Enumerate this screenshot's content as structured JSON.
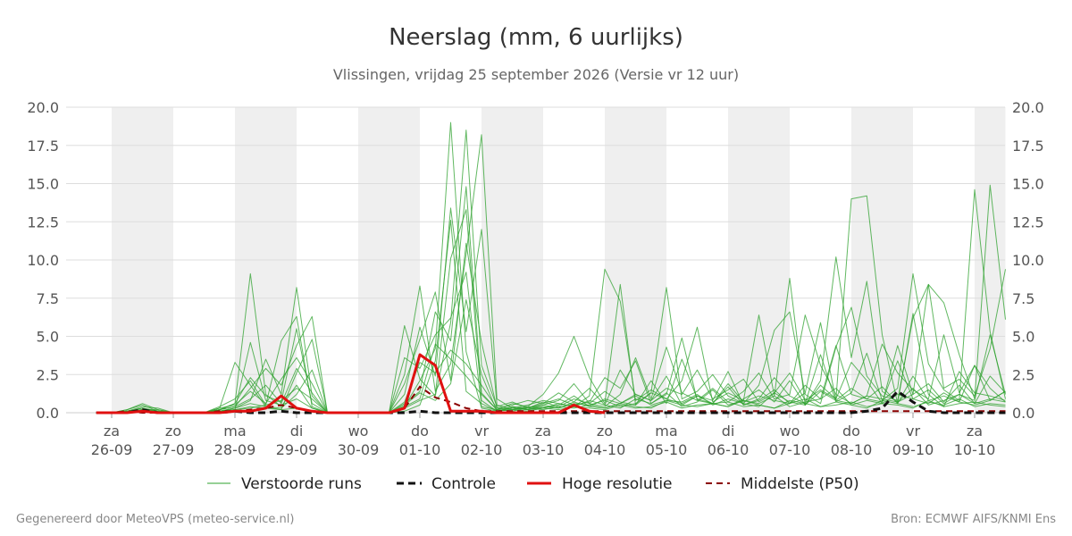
{
  "header": {
    "title": "Neerslag (mm, 6 uurlijks)",
    "subtitle": "Vlissingen, vrijdag 25 september 2026 (Versie vr 12 uur)"
  },
  "credits": {
    "left": "Gegenereerd door MeteoVPS (meteo-service.nl)",
    "right": "Bron: ECMWF AIFS/KNMI Ens"
  },
  "chart_data": {
    "type": "line",
    "x_unit": "dag",
    "day_labels": [
      {
        "day": "za",
        "date": "26-09"
      },
      {
        "day": "zo",
        "date": "27-09"
      },
      {
        "day": "ma",
        "date": "28-09"
      },
      {
        "day": "di",
        "date": "29-09"
      },
      {
        "day": "wo",
        "date": "30-09"
      },
      {
        "day": "do",
        "date": "01-10"
      },
      {
        "day": "vr",
        "date": "02-10"
      },
      {
        "day": "za",
        "date": "03-10"
      },
      {
        "day": "zo",
        "date": "04-10"
      },
      {
        "day": "ma",
        "date": "05-10"
      },
      {
        "day": "di",
        "date": "06-10"
      },
      {
        "day": "wo",
        "date": "07-10"
      },
      {
        "day": "do",
        "date": "08-10"
      },
      {
        "day": "vr",
        "date": "09-10"
      },
      {
        "day": "za",
        "date": "10-10"
      }
    ],
    "weekend_bands": [
      [
        0,
        1
      ],
      [
        2,
        3
      ],
      [
        4,
        5
      ],
      [
        6,
        7
      ],
      [
        8,
        9
      ],
      [
        10,
        11
      ],
      [
        12,
        13
      ],
      [
        14,
        14.5
      ]
    ],
    "x_range": [
      -0.25,
      14.5
    ],
    "y_range": [
      0,
      20
    ],
    "y_ticks": [
      "0.0",
      "2.5",
      "5.0",
      "7.5",
      "10.0",
      "12.5",
      "15.0",
      "17.5",
      "20.0"
    ],
    "grid": true,
    "legend_position": "bottom",
    "colors": {
      "members": "#2ca02c",
      "control": "#111111",
      "hires": "#e01010",
      "median": "#8b0000",
      "band": "#efefef"
    },
    "legend": [
      "Verstoorde runs",
      "Controle",
      "Hoge resolutie",
      "Middelste (P50)"
    ],
    "hires": {
      "x": [
        -0.25,
        0,
        0.25,
        0.5,
        0.75,
        1,
        1.25,
        1.5,
        1.75,
        2,
        2.25,
        2.5,
        2.75,
        3,
        3.25,
        3.5,
        3.75,
        4,
        4.25,
        4.5,
        4.75,
        5,
        5.25,
        5.5,
        5.75,
        6,
        6.25,
        6.5,
        6.75,
        7,
        7.25,
        7.5,
        7.75,
        8
      ],
      "y": [
        0.0,
        0.0,
        0.0,
        0.1,
        0.0,
        0.0,
        0.0,
        0.0,
        0.0,
        0.1,
        0.1,
        0.3,
        1.1,
        0.3,
        0.1,
        0.0,
        0.0,
        0.0,
        0.0,
        0.0,
        0.3,
        3.8,
        3.1,
        0.1,
        0.1,
        0.1,
        0.0,
        0.0,
        0.0,
        0.0,
        0.0,
        0.5,
        0.1,
        0.0
      ]
    },
    "median": {
      "x": [
        -0.25,
        0,
        0.25,
        0.5,
        0.75,
        1,
        1.25,
        1.5,
        1.75,
        2,
        2.25,
        2.5,
        2.75,
        3,
        3.25,
        3.5,
        3.75,
        4,
        4.25,
        4.5,
        4.75,
        5,
        5.25,
        5.5,
        5.75,
        6,
        6.25,
        6.5,
        6.75,
        7,
        7.25,
        7.5,
        7.75,
        8,
        8.25,
        8.5,
        8.75,
        9,
        9.25,
        9.5,
        9.75,
        10,
        10.25,
        10.5,
        10.75,
        11,
        11.25,
        11.5,
        11.75,
        12,
        12.25,
        12.5,
        12.75,
        13,
        13.25,
        13.5,
        13.75,
        14,
        14.25,
        14.5
      ],
      "y": [
        0.0,
        0.0,
        0.1,
        0.0,
        0.0,
        0.0,
        0.0,
        0.0,
        0.1,
        0.1,
        0.2,
        0.3,
        0.5,
        0.3,
        0.1,
        0.0,
        0.0,
        0.0,
        0.0,
        0.0,
        0.3,
        1.7,
        1.0,
        0.7,
        0.3,
        0.1,
        0.1,
        0.1,
        0.1,
        0.1,
        0.1,
        0.1,
        0.1,
        0.1,
        0.1,
        0.1,
        0.1,
        0.1,
        0.1,
        0.1,
        0.1,
        0.1,
        0.1,
        0.1,
        0.1,
        0.1,
        0.1,
        0.1,
        0.1,
        0.1,
        0.1,
        0.1,
        0.1,
        0.1,
        0.1,
        0.1,
        0.1,
        0.1,
        0.1,
        0.1
      ]
    },
    "control": {
      "x": [
        -0.25,
        0,
        0.25,
        0.5,
        0.75,
        1,
        1.25,
        1.5,
        1.75,
        2,
        2.25,
        2.5,
        2.75,
        3,
        3.25,
        3.5,
        3.75,
        4,
        4.25,
        4.5,
        4.75,
        5,
        5.25,
        5.5,
        5.75,
        6,
        6.25,
        6.5,
        6.75,
        7,
        7.25,
        7.5,
        7.75,
        8,
        8.25,
        8.5,
        8.75,
        9,
        9.25,
        9.5,
        9.75,
        10,
        10.25,
        10.5,
        10.75,
        11,
        11.25,
        11.5,
        11.75,
        12,
        12.25,
        12.5,
        12.75,
        13,
        13.25,
        13.5,
        13.75,
        14,
        14.25,
        14.5
      ],
      "y": [
        0.0,
        0.0,
        0.0,
        0.2,
        0.0,
        0.0,
        0.0,
        0.0,
        0.0,
        0.1,
        0.0,
        0.0,
        0.1,
        0.0,
        0.0,
        0.0,
        0.0,
        0.0,
        0.0,
        0.0,
        0.0,
        0.1,
        0.0,
        0.0,
        0.0,
        0.0,
        0.0,
        0.0,
        0.0,
        0.0,
        0.0,
        0.0,
        0.0,
        0.0,
        0.0,
        0.0,
        0.0,
        0.0,
        0.0,
        0.0,
        0.0,
        0.0,
        0.0,
        0.0,
        0.0,
        0.0,
        0.0,
        0.0,
        0.0,
        0.0,
        0.1,
        0.3,
        1.4,
        0.7,
        0.1,
        0.0,
        0.0,
        0.0,
        0.0,
        0.0
      ]
    },
    "members_x": [
      -0.25,
      0,
      0.25,
      0.5,
      0.75,
      1,
      1.25,
      1.5,
      1.75,
      2,
      2.25,
      2.5,
      2.75,
      3,
      3.25,
      3.5,
      3.75,
      4,
      4.25,
      4.5,
      4.75,
      5,
      5.25,
      5.5,
      5.75,
      6,
      6.25,
      6.5,
      6.75,
      7,
      7.25,
      7.5,
      7.75,
      8,
      8.25,
      8.5,
      8.75,
      9,
      9.25,
      9.5,
      9.75,
      10,
      10.25,
      10.5,
      10.75,
      11,
      11.25,
      11.5,
      11.75,
      12,
      12.25,
      12.5,
      12.75,
      13,
      13.25,
      13.5,
      13.75,
      14,
      14.25,
      14.5
    ],
    "members": [
      [
        0,
        0,
        0.2,
        0.6,
        0.2,
        0,
        0,
        0,
        0.3,
        3.3,
        1.8,
        0.4,
        0.2,
        0.3,
        0.1,
        0,
        0,
        0,
        0,
        0,
        0.4,
        2.1,
        4.2,
        19,
        4,
        0.3,
        0.1,
        0.4,
        0.2,
        0.3,
        0.5,
        1.1,
        0.4,
        0.3,
        0.6,
        1.2,
        0.8,
        2.4,
        0.5,
        1.1,
        0.6,
        0.4,
        0.9,
        1.5,
        0.7,
        2.1,
        0.5,
        1.8,
        0.9,
        14,
        14.2,
        5.1,
        0.6,
        6.5,
        1.2,
        0.4,
        2.7,
        1.3,
        1.1,
        0.8
      ],
      [
        0,
        0,
        0.1,
        0.4,
        0.3,
        0,
        0,
        0,
        0.2,
        0.6,
        9.1,
        1.2,
        0.4,
        1.8,
        0.3,
        0,
        0,
        0,
        0,
        0,
        5.7,
        2.2,
        1.1,
        5.9,
        18.5,
        3.1,
        0.4,
        0.7,
        0.3,
        0.5,
        0.8,
        1.9,
        0.6,
        0.4,
        1.2,
        3.6,
        0.9,
        4.3,
        1.3,
        0.8,
        0.6,
        1.7,
        0.5,
        0.9,
        2.3,
        1.1,
        0.6,
        3.8,
        0.7,
        1.3,
        3.9,
        0.8,
        1.6,
        9.1,
        3.2,
        1.5,
        0.8,
        14.6,
        5.3,
        0.9
      ],
      [
        0,
        0,
        0.1,
        0.2,
        0.1,
        0,
        0,
        0,
        0.4,
        0.9,
        2.1,
        0.5,
        4.7,
        6.3,
        0.4,
        0,
        0,
        0,
        0,
        0,
        2.5,
        8.3,
        1.4,
        3.2,
        10.4,
        18.2,
        0.9,
        0.3,
        0.5,
        0.8,
        0.6,
        0.4,
        1.1,
        9.4,
        7.3,
        0.8,
        1.5,
        0.9,
        2.1,
        5.6,
        0.7,
        1.3,
        0.8,
        6.4,
        1.1,
        8.8,
        0.5,
        2.1,
        10.2,
        3.6,
        8.6,
        1.4,
        0.7,
        1.2,
        8.4,
        7.2,
        3.8,
        0.9,
        14.9,
        6.1
      ],
      [
        0,
        0,
        0.2,
        0.5,
        0.1,
        0,
        0,
        0,
        0.1,
        0.3,
        0.8,
        3.5,
        1.2,
        8.2,
        1.1,
        0,
        0,
        0,
        0,
        0,
        0.6,
        1.4,
        6.6,
        4.7,
        14.8,
        1.3,
        0.2,
        0.6,
        0.4,
        1.2,
        2.6,
        5,
        2.3,
        0.6,
        8.4,
        0.5,
        1.3,
        8.2,
        0.9,
        1.4,
        2.5,
        1.1,
        0.6,
        1.8,
        5.4,
        6.6,
        1.2,
        0.6,
        4.3,
        6.9,
        2.4,
        1.1,
        0.8,
        6.2,
        8.4,
        1.6,
        2.2,
        1.1,
        4.2,
        9.4
      ],
      [
        0,
        0,
        0.1,
        0.3,
        0.1,
        0,
        0,
        0,
        0.2,
        0.4,
        1.6,
        2.9,
        1.8,
        4.4,
        6.3,
        0,
        0,
        0,
        0,
        0,
        1.2,
        5.6,
        2.4,
        13.4,
        5.3,
        12,
        0.5,
        0.2,
        0.3,
        0.6,
        0.9,
        0.5,
        0.7,
        2.3,
        1.6,
        3.4,
        0.6,
        1.2,
        4.9,
        0.8,
        1.6,
        0.7,
        1.4,
        2.6,
        0.9,
        1.2,
        6.4,
        3.1,
        1.2,
        0.6,
        1.1,
        4.5,
        2.6,
        1.5,
        0.9,
        5.1,
        1.3,
        3.1,
        0.8,
        1.4
      ],
      [
        0,
        0,
        0,
        0.1,
        0,
        0,
        0,
        0,
        0.1,
        0.2,
        4.6,
        0.8,
        0.5,
        0.9,
        0.3,
        0,
        0,
        0,
        0,
        0,
        0.3,
        0.8,
        1.2,
        10.1,
        13.3,
        0.8,
        0.1,
        0.3,
        0.2,
        0.4,
        0.3,
        0.6,
        0.5,
        0.8,
        0.4,
        0.6,
        1.3,
        0.9,
        0.6,
        1.1,
        0.8,
        2.7,
        0.5,
        0.8,
        1.5,
        0.6,
        1.8,
        0.9,
        4.4,
        1.2,
        0.9,
        1.7,
        0.6,
        2.4,
        0.8,
        1.1,
        0.7,
        3.1,
        1.6,
        0.7
      ],
      [
        0,
        0,
        0.1,
        0.2,
        0.2,
        0,
        0,
        0,
        0.3,
        0.5,
        1.4,
        0.6,
        2.2,
        3.6,
        1.9,
        0,
        0,
        0,
        0,
        0,
        1.9,
        4.8,
        7.9,
        2.1,
        11.1,
        4.6,
        0.3,
        0.5,
        0.8,
        0.6,
        1.3,
        0.7,
        1.6,
        0.5,
        2.8,
        1.2,
        0.8,
        1.6,
        1.2,
        2.8,
        0.9,
        1.5,
        2.2,
        0.7,
        1.3,
        2.6,
        0.8,
        1.5,
        0.9,
        3.3,
        2.1,
        0.6,
        4.4,
        1.2,
        1.9,
        0.7,
        1.8,
        0.6,
        2.4,
        1.3
      ],
      [
        0,
        0,
        0,
        0.1,
        0.1,
        0,
        0,
        0,
        0.1,
        0.2,
        0.4,
        0.3,
        0.2,
        2.6,
        4.8,
        0,
        0,
        0,
        0,
        0,
        0.1,
        0.5,
        3.4,
        12.6,
        1.4,
        0.6,
        0.1,
        0.2,
        0.1,
        0.3,
        0.2,
        0.4,
        0.3,
        0.2,
        0.5,
        0.3,
        0.4,
        0.7,
        0.3,
        0.5,
        0.6,
        0.4,
        0.8,
        0.5,
        0.3,
        0.6,
        0.9,
        0.4,
        0.7,
        0.5,
        0.3,
        0.8,
        0.6,
        0.4,
        0.7,
        0.5,
        0.9,
        0.4,
        0.6,
        0.5
      ],
      [
        0,
        0,
        0.1,
        0.3,
        0.1,
        0,
        0,
        0,
        0.2,
        0.6,
        2.3,
        1.1,
        0.7,
        5.5,
        0.6,
        0,
        0,
        0,
        0,
        0,
        3.6,
        2.9,
        5.1,
        6.2,
        9.2,
        0.4,
        0.2,
        0.4,
        0.3,
        0.7,
        0.4,
        0.9,
        0.6,
        1.4,
        0.7,
        0.5,
        2.1,
        0.6,
        3.5,
        0.9,
        0.6,
        1.9,
        0.7,
        1.1,
        0.8,
        0.6,
        1.3,
        5.9,
        0.8,
        1.6,
        0.9,
        0.7,
        3.4,
        0.9,
        1.5,
        0.6,
        1.2,
        0.8,
        5.1,
        1.2
      ],
      [
        0,
        0,
        0,
        0.2,
        0,
        0,
        0,
        0,
        0.1,
        0.3,
        0.6,
        0.4,
        0.3,
        1.2,
        2.8,
        0,
        0,
        0,
        0,
        0,
        0.5,
        1.3,
        0.8,
        1.9,
        7.4,
        2.5,
        0.1,
        0.3,
        0.2,
        0.5,
        0.3,
        0.7,
        0.4,
        0.9,
        0.6,
        1.1,
        0.5,
        0.8,
        0.7,
        1.2,
        0.5,
        0.9,
        0.6,
        0.4,
        1.3,
        0.7,
        0.5,
        1.4,
        0.8,
        0.6,
        1.1,
        0.9,
        0.7,
        1.6,
        0.5,
        0.8,
        1.2,
        0.6,
        0.9,
        0.7
      ],
      [
        0,
        0,
        0.1,
        0.1,
        0.1,
        0,
        0,
        0,
        0.2,
        0.4,
        0.9,
        1.8,
        0.6,
        2.9,
        1.3,
        0,
        0,
        0,
        0,
        0,
        0.7,
        3.3,
        2.6,
        4.1,
        3.2,
        1.8,
        0.3,
        0.2,
        0.4,
        0.3,
        0.6,
        0.4,
        0.8,
        0.5,
        0.3,
        0.9,
        0.6,
        1.3,
        0.4,
        0.7,
        1.5,
        0.5,
        0.8,
        0.6,
        1.1,
        0.4,
        0.7,
        0.9,
        1.6,
        0.5,
        0.8,
        0.6,
        1.2,
        0.9,
        0.6,
        1.3,
        0.7,
        0.5,
        0.8,
        1.4
      ],
      [
        0,
        0,
        0,
        0.1,
        0,
        0,
        0,
        0,
        0.1,
        0.2,
        0.3,
        0.5,
        0.8,
        1.6,
        0.9,
        0,
        0,
        0,
        0,
        0,
        0.4,
        0.9,
        4.5,
        3.5,
        2.4,
        1.2,
        0.2,
        0.1,
        0.3,
        0.2,
        0.4,
        0.3,
        0.5,
        0.3,
        0.6,
        0.4,
        0.3,
        0.8,
        0.5,
        0.4,
        0.6,
        0.7,
        0.4,
        0.5,
        0.3,
        0.8,
        0.6,
        0.4,
        0.5,
        0.7,
        0.4,
        0.6,
        0.5,
        0.3,
        0.8,
        0.4,
        0.6,
        0.7,
        0.5,
        0.4
      ]
    ]
  }
}
